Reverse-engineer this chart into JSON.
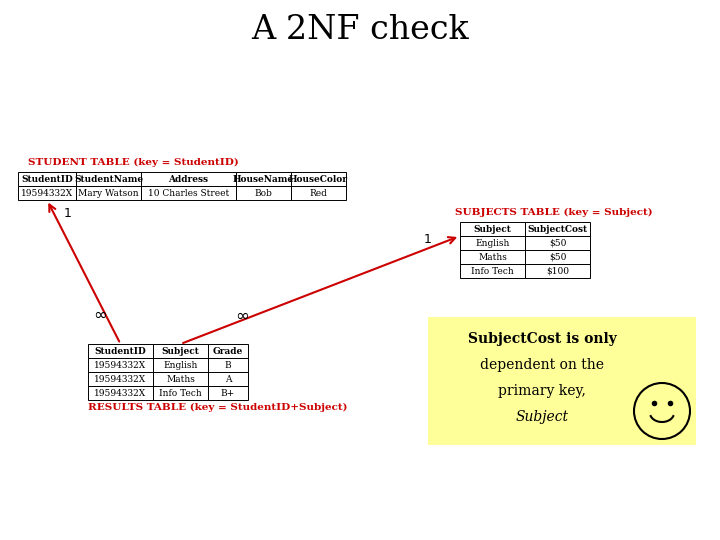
{
  "title": "A 2NF check",
  "title_fontsize": 24,
  "background_color": "#ffffff",
  "student_table_label": "STUDENT TABLE (key = StudentID)",
  "student_table_label_color": "#cc0000",
  "student_headers": [
    "StudentID",
    "StudentName",
    "Address",
    "HouseName",
    "HouseColor"
  ],
  "student_rows": [
    [
      "19594332X",
      "Mary Watson",
      "10 Charles Street",
      "Bob",
      "Red"
    ]
  ],
  "subjects_table_label": "SUBJECTS TABLE (key = Subject)",
  "subjects_table_label_color": "#cc0000",
  "subjects_headers": [
    "Subject",
    "SubjectCost"
  ],
  "subjects_rows": [
    [
      "English",
      "$50"
    ],
    [
      "Maths",
      "$50"
    ],
    [
      "Info Tech",
      "$100"
    ]
  ],
  "results_table_label": "RESULTS TABLE (key = StudentID+Subject)",
  "results_table_label_color": "#cc0000",
  "results_headers": [
    "StudentID",
    "Subject",
    "Grade"
  ],
  "results_rows": [
    [
      "19594332X",
      "English",
      "B"
    ],
    [
      "19594332X",
      "Maths",
      "A"
    ],
    [
      "19594332X",
      "Info Tech",
      "B+"
    ]
  ],
  "note_bg_color": "#ffff99",
  "arrow_color": "#cc0000",
  "infinity_symbol": "∞",
  "one_symbol": "1",
  "smiley_color": "#ffff99",
  "table_font_size": 6.5,
  "label_font_size": 7.5,
  "note_font_size": 10
}
